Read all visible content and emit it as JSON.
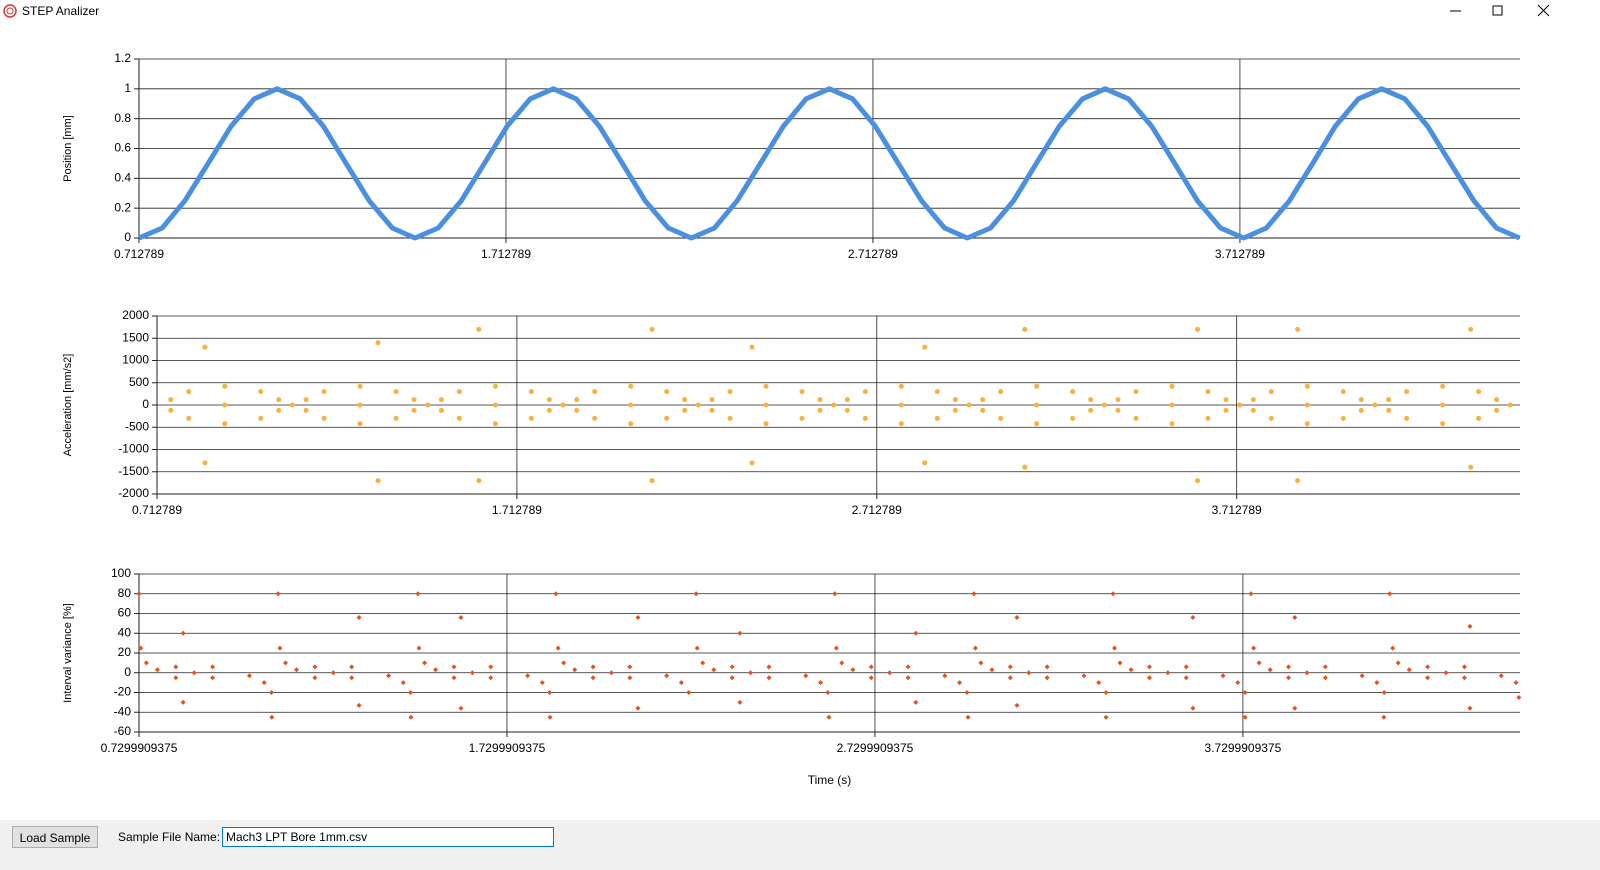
{
  "window": {
    "title": "STEP Analizer"
  },
  "controls": {
    "button": "Load Sample",
    "file_label": "Sample File Name:",
    "file_name": "Mach3 LPT Bore 1mm.csv"
  },
  "chart_data": [
    {
      "type": "line",
      "ylabel": "Position [mm]",
      "color": "#4a8fe0",
      "grid": true,
      "xlim": [
        0.712789,
        4.476
      ],
      "xticks": [
        0.712789,
        1.712789,
        2.712789,
        3.712789
      ],
      "ylim": [
        0,
        1.2
      ],
      "yticks": [
        0,
        0.2,
        0.4,
        0.6,
        0.8,
        1,
        1.2
      ],
      "x": [
        0.713,
        0.776,
        0.838,
        0.901,
        0.964,
        1.027,
        1.089,
        1.152,
        1.215,
        1.277,
        1.34,
        1.403,
        1.465,
        1.528,
        1.591,
        1.654,
        1.716,
        1.779,
        1.842,
        1.904,
        1.967,
        2.03,
        2.092,
        2.155,
        2.218,
        2.281,
        2.343,
        2.406,
        2.469,
        2.531,
        2.594,
        2.657,
        2.719,
        2.782,
        2.845,
        2.908,
        2.97,
        3.033,
        3.096,
        3.158,
        3.221,
        3.284,
        3.346,
        3.409,
        3.472,
        3.535,
        3.597,
        3.66,
        3.723,
        3.785,
        3.848,
        3.911,
        3.973,
        4.036,
        4.099,
        4.162,
        4.224,
        4.287,
        4.35,
        4.412,
        4.475
      ],
      "values": [
        0,
        0.067,
        0.25,
        0.5,
        0.75,
        0.933,
        1,
        0.933,
        0.75,
        0.5,
        0.25,
        0.067,
        0,
        0.067,
        0.25,
        0.5,
        0.75,
        0.933,
        1,
        0.933,
        0.75,
        0.5,
        0.25,
        0.067,
        0,
        0.067,
        0.25,
        0.5,
        0.75,
        0.933,
        1,
        0.933,
        0.75,
        0.5,
        0.25,
        0.067,
        0,
        0.067,
        0.25,
        0.5,
        0.75,
        0.933,
        1,
        0.933,
        0.75,
        0.5,
        0.25,
        0.067,
        0,
        0.067,
        0.25,
        0.5,
        0.75,
        0.933,
        1,
        0.933,
        0.75,
        0.5,
        0.25,
        0.067,
        0
      ]
    },
    {
      "type": "scatter",
      "marker": "circle",
      "ylabel": "Acceleration [mm/s2]",
      "color": "#f9b03e",
      "grid": true,
      "xlim": [
        0.712789,
        4.5
      ],
      "xticks": [
        0.712789,
        1.712789,
        2.712789,
        3.712789
      ],
      "ylim": [
        -2000,
        2000
      ],
      "yticks": [
        -2000,
        -1500,
        -1000,
        -500,
        0,
        500,
        1000,
        1500,
        2000
      ],
      "x": [
        0.751,
        0.801,
        0.901,
        1.001,
        1.051,
        0.751,
        0.801,
        0.901,
        1.001,
        1.051,
        0.901,
        1.089,
        1.127,
        1.177,
        1.277,
        1.377,
        1.427,
        1.127,
        1.177,
        1.277,
        1.377,
        1.427,
        1.277,
        1.465,
        1.503,
        1.553,
        1.653,
        1.753,
        1.803,
        1.503,
        1.553,
        1.653,
        1.753,
        1.803,
        1.653,
        1.841,
        1.879,
        1.929,
        2.029,
        2.129,
        2.179,
        1.879,
        1.929,
        2.029,
        2.129,
        2.179,
        2.029,
        2.217,
        2.255,
        2.305,
        2.405,
        2.505,
        2.555,
        2.255,
        2.305,
        2.405,
        2.505,
        2.555,
        2.405,
        2.593,
        2.631,
        2.681,
        2.781,
        2.881,
        2.931,
        2.631,
        2.681,
        2.781,
        2.881,
        2.931,
        2.781,
        2.969,
        3.007,
        3.057,
        3.157,
        3.257,
        3.307,
        3.007,
        3.057,
        3.157,
        3.257,
        3.307,
        3.157,
        3.345,
        3.383,
        3.433,
        3.533,
        3.633,
        3.683,
        3.383,
        3.433,
        3.533,
        3.633,
        3.683,
        3.533,
        3.721,
        3.759,
        3.809,
        3.909,
        4.009,
        4.059,
        3.759,
        3.809,
        3.909,
        4.009,
        4.059,
        3.909,
        4.097,
        4.135,
        4.185,
        4.285,
        4.385,
        4.435,
        4.135,
        4.185,
        4.285,
        4.385,
        4.435,
        4.285,
        4.473,
        0.846,
        0.846,
        1.327,
        1.327,
        1.607,
        1.607,
        2.088,
        2.088,
        2.366,
        2.366,
        2.846,
        2.846,
        3.124,
        3.124,
        3.604,
        3.604,
        3.882,
        3.882,
        4.363,
        4.363
      ],
      "values": [
        120,
        300,
        420,
        300,
        120,
        -120,
        -300,
        -420,
        -300,
        -120,
        0,
        0,
        120,
        300,
        420,
        300,
        120,
        -120,
        -300,
        -420,
        -300,
        -120,
        0,
        0,
        120,
        300,
        420,
        300,
        120,
        -120,
        -300,
        -420,
        -300,
        -120,
        0,
        0,
        120,
        300,
        420,
        300,
        120,
        -120,
        -300,
        -420,
        -300,
        -120,
        0,
        0,
        120,
        300,
        420,
        300,
        120,
        -120,
        -300,
        -420,
        -300,
        -120,
        0,
        0,
        120,
        300,
        420,
        300,
        120,
        -120,
        -300,
        -420,
        -300,
        -120,
        0,
        0,
        120,
        300,
        420,
        300,
        120,
        -120,
        -300,
        -420,
        -300,
        -120,
        0,
        0,
        120,
        300,
        420,
        300,
        120,
        -120,
        -300,
        -420,
        -300,
        -120,
        0,
        0,
        120,
        300,
        420,
        300,
        120,
        -120,
        -300,
        -420,
        -300,
        -120,
        0,
        0,
        120,
        300,
        420,
        300,
        120,
        -120,
        -300,
        -420,
        -300,
        -120,
        0,
        0,
        1300,
        -1300,
        1400,
        -1700,
        1700,
        -1700,
        1700,
        -1700,
        1300,
        -1300,
        1300,
        -1300,
        1700,
        -1400,
        1700,
        -1700,
        1700,
        -1700,
        1700,
        -1400
      ]
    },
    {
      "type": "scatter",
      "marker": "diamond",
      "ylabel": "Interval variance [%]",
      "xlabel": "Time (s)",
      "color": "#e2521d",
      "grid": true,
      "xlim": [
        0.7299909375,
        4.483
      ],
      "xticks": [
        0.7299909375,
        1.7299909375,
        2.7299909375,
        3.7299909375
      ],
      "ylim": [
        -60,
        100
      ],
      "yticks": [
        -60,
        -40,
        -20,
        0,
        20,
        40,
        60,
        80,
        100
      ],
      "x": [
        0.735,
        0.75,
        0.78,
        0.83,
        0.93,
        0.83,
        0.93,
        0.88,
        1.03,
        1.07,
        1.09,
        1.113,
        1.128,
        1.158,
        1.208,
        1.308,
        1.208,
        1.308,
        1.258,
        1.408,
        1.448,
        1.468,
        1.491,
        1.506,
        1.536,
        1.586,
        1.686,
        1.586,
        1.686,
        1.636,
        1.786,
        1.826,
        1.846,
        1.869,
        1.884,
        1.914,
        1.964,
        2.064,
        1.964,
        2.064,
        2.014,
        2.164,
        2.204,
        2.224,
        2.247,
        2.262,
        2.292,
        2.342,
        2.442,
        2.342,
        2.442,
        2.392,
        2.542,
        2.582,
        2.602,
        2.625,
        2.64,
        2.67,
        2.72,
        2.82,
        2.72,
        2.82,
        2.77,
        2.92,
        2.96,
        2.98,
        3.003,
        3.018,
        3.048,
        3.098,
        3.198,
        3.098,
        3.198,
        3.148,
        3.298,
        3.338,
        3.358,
        3.381,
        3.396,
        3.426,
        3.476,
        3.576,
        3.476,
        3.576,
        3.526,
        3.676,
        3.716,
        3.736,
        3.759,
        3.774,
        3.804,
        3.854,
        3.954,
        3.854,
        3.954,
        3.904,
        4.054,
        4.094,
        4.114,
        4.137,
        4.152,
        4.182,
        4.232,
        4.332,
        4.232,
        4.332,
        4.282,
        4.432,
        4.472,
        4.48,
        0.73,
        0.85,
        0.85,
        1.108,
        1.091,
        1.328,
        1.328,
        1.488,
        1.469,
        1.605,
        1.605,
        1.863,
        1.847,
        2.086,
        2.086,
        2.244,
        2.363,
        2.363,
        2.621,
        2.605,
        2.841,
        2.841,
        2.999,
        2.983,
        3.116,
        3.116,
        3.377,
        3.358,
        3.594,
        3.594,
        3.752,
        3.736,
        3.871,
        3.871,
        4.129,
        4.113,
        4.347,
        4.347
      ],
      "values": [
        25,
        10,
        3,
        6,
        6,
        -5,
        -5,
        0,
        -3,
        -10,
        -20,
        25,
        10,
        3,
        6,
        6,
        -5,
        -5,
        0,
        -3,
        -10,
        -20,
        25,
        10,
        3,
        6,
        6,
        -5,
        -5,
        0,
        -3,
        -10,
        -20,
        25,
        10,
        3,
        6,
        6,
        -5,
        -5,
        0,
        -3,
        -10,
        -20,
        25,
        10,
        3,
        6,
        6,
        -5,
        -5,
        0,
        -3,
        -10,
        -20,
        25,
        10,
        3,
        6,
        6,
        -5,
        -5,
        0,
        -3,
        -10,
        -20,
        25,
        10,
        3,
        6,
        6,
        -5,
        -5,
        0,
        -3,
        -10,
        -20,
        25,
        10,
        3,
        6,
        6,
        -5,
        -5,
        0,
        -3,
        -10,
        -20,
        25,
        10,
        3,
        6,
        6,
        -5,
        -5,
        0,
        -3,
        -10,
        -20,
        25,
        10,
        3,
        6,
        6,
        -5,
        -5,
        0,
        -3,
        -10,
        -25,
        80,
        40,
        -30,
        80,
        -45,
        56,
        -33,
        80,
        -45,
        56,
        -36,
        80,
        -45,
        56,
        -36,
        80,
        40,
        -30,
        80,
        -45,
        40,
        -30,
        80,
        -45,
        56,
        -33,
        80,
        -45,
        56,
        -36,
        80,
        -45,
        56,
        -36,
        80,
        -45,
        47,
        -36
      ]
    }
  ]
}
